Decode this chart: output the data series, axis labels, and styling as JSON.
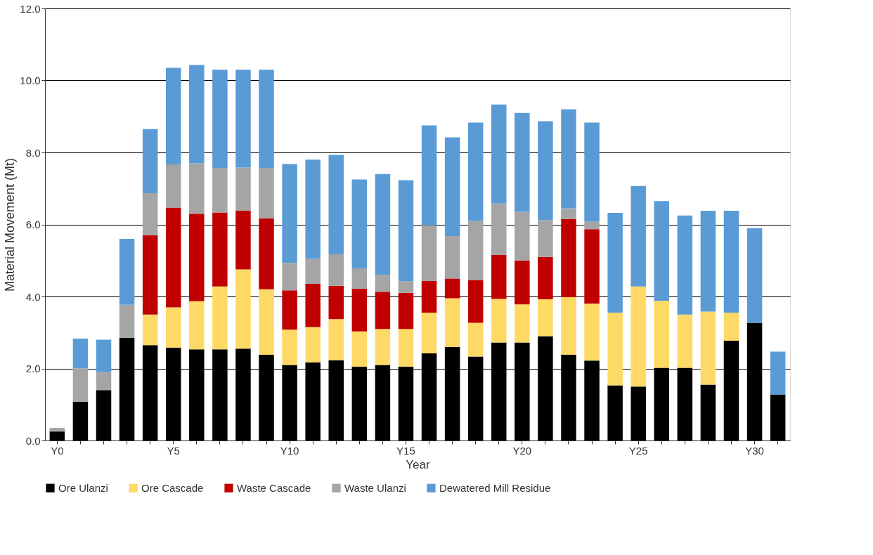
{
  "chart_data": {
    "type": "bar",
    "stacked": true,
    "xlabel": "Year",
    "ylabel": "Material Movement (Mt)",
    "categories": [
      "Y0",
      null,
      null,
      null,
      null,
      "Y5",
      null,
      null,
      null,
      null,
      "Y10",
      null,
      null,
      null,
      null,
      "Y15",
      null,
      null,
      null,
      null,
      "Y20",
      null,
      null,
      null,
      null,
      "Y25",
      null,
      null,
      null,
      null,
      "Y30",
      null
    ],
    "series": [
      {
        "name": "Ore Ulanzi",
        "color": "#000000",
        "values": [
          0.25,
          1.08,
          1.4,
          2.85,
          2.65,
          2.58,
          2.53,
          2.53,
          2.55,
          2.38,
          2.1,
          2.17,
          2.23,
          2.05,
          2.1,
          2.05,
          2.42,
          2.6,
          2.33,
          2.72,
          2.72,
          2.9,
          2.38,
          2.22,
          1.53,
          1.5,
          2.02,
          2.02,
          1.55,
          2.77,
          3.27,
          1.28
        ]
      },
      {
        "name": "Ore Cascade",
        "color": "#ffd966",
        "values": [
          null,
          null,
          null,
          null,
          0.85,
          1.12,
          1.34,
          1.75,
          2.2,
          1.82,
          0.98,
          0.98,
          1.14,
          0.98,
          1.0,
          1.05,
          1.13,
          1.35,
          0.94,
          1.21,
          1.06,
          1.02,
          1.6,
          1.58,
          2.02,
          2.78,
          1.86,
          1.48,
          2.03,
          0.78,
          null,
          null
        ]
      },
      {
        "name": "Waste Cascade",
        "color": "#c00000",
        "values": [
          null,
          null,
          null,
          null,
          2.2,
          2.77,
          2.43,
          2.05,
          1.63,
          1.97,
          1.09,
          1.2,
          0.93,
          1.19,
          1.03,
          1.0,
          0.88,
          0.55,
          1.18,
          1.22,
          1.22,
          1.18,
          2.17,
          2.07,
          null,
          null,
          null,
          null,
          null,
          null,
          null,
          null
        ]
      },
      {
        "name": "Waste Ulanzi",
        "color": "#a5a5a5",
        "values": [
          0.1,
          0.92,
          0.5,
          0.92,
          1.17,
          1.2,
          1.4,
          1.24,
          1.2,
          1.4,
          0.76,
          0.7,
          0.87,
          0.56,
          0.47,
          0.32,
          1.55,
          1.18,
          1.65,
          1.43,
          1.35,
          1.02,
          0.3,
          0.21,
          null,
          null,
          null,
          null,
          null,
          null,
          null,
          null
        ]
      },
      {
        "name": "Dewatered Mill Residue",
        "color": "#5b9bd5",
        "values": [
          null,
          0.83,
          0.9,
          1.83,
          1.78,
          2.68,
          2.73,
          2.73,
          2.72,
          2.73,
          2.75,
          2.75,
          2.76,
          2.47,
          2.8,
          2.81,
          2.77,
          2.74,
          2.73,
          2.75,
          2.75,
          2.75,
          2.75,
          2.75,
          2.77,
          2.79,
          2.77,
          2.75,
          2.8,
          2.83,
          2.63,
          1.19
        ]
      }
    ],
    "ylim": [
      0,
      12
    ],
    "yticks": [
      {
        "value": 0,
        "label": "0.0"
      },
      {
        "value": 2,
        "label": "2.0"
      },
      {
        "value": 4,
        "label": "4.0"
      },
      {
        "value": 6,
        "label": "6.0"
      },
      {
        "value": 8,
        "label": "8.0"
      },
      {
        "value": 10,
        "label": "10.0"
      },
      {
        "value": 12,
        "label": "12.0"
      }
    ],
    "grid": "y",
    "legend": "bottom"
  }
}
